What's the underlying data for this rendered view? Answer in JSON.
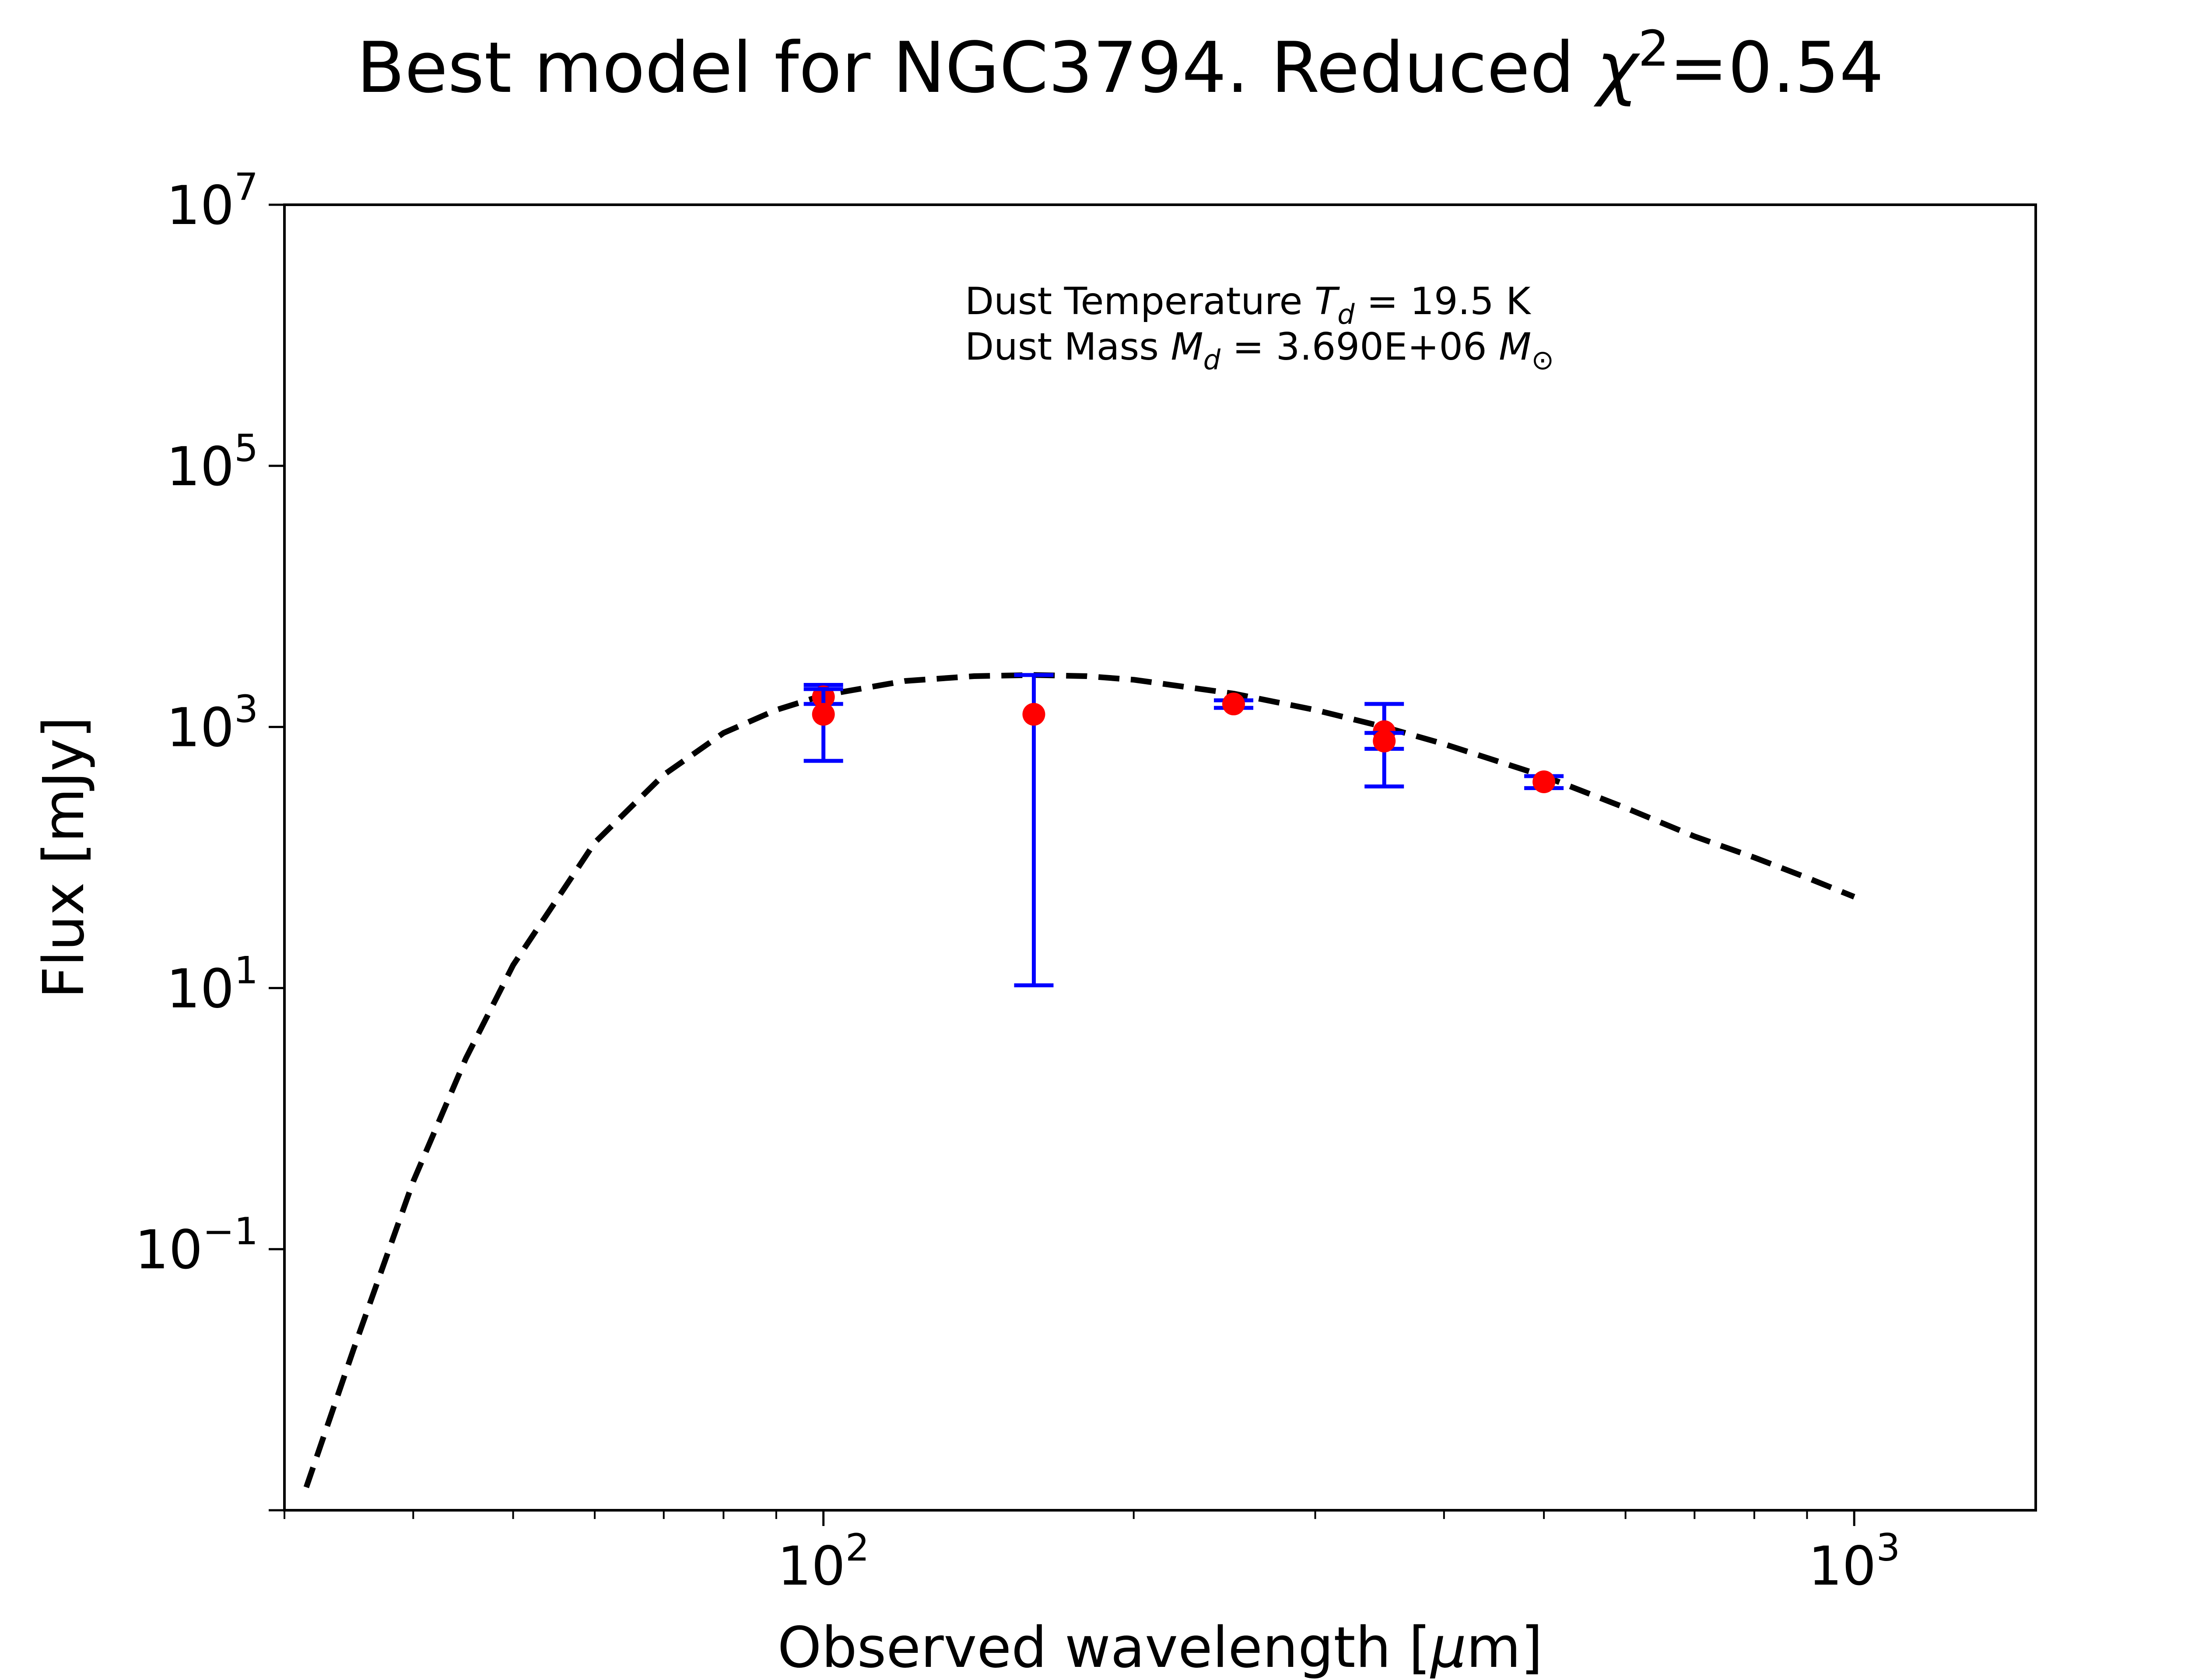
{
  "chart_data": {
    "type": "scatter",
    "title": {
      "text": "Best model for NGC3794. Reduced ",
      "symbol": "χ",
      "superscript": "2",
      "suffix": "=0.54"
    },
    "xlabel": {
      "prefix": "Observed wavelength [",
      "symbol": "μ",
      "suffix": "m]"
    },
    "ylabel": "Flux [mJy]",
    "xscale": "log",
    "yscale": "log",
    "xlim": [
      30,
      1500
    ],
    "ylim": [
      0.001,
      10000000
    ],
    "x_ticks": [
      {
        "value": 100,
        "base": "10",
        "exp": "2"
      },
      {
        "value": 1000,
        "base": "10",
        "exp": "3"
      }
    ],
    "y_ticks": [
      {
        "value": 0.1,
        "base": "10",
        "exp": "−1"
      },
      {
        "value": 10,
        "base": "10",
        "exp": "1"
      },
      {
        "value": 1000,
        "base": "10",
        "exp": "3"
      },
      {
        "value": 100000,
        "base": "10",
        "exp": "5"
      },
      {
        "value": 10000000,
        "base": "10",
        "exp": "7"
      }
    ],
    "series": [
      {
        "kind": "model",
        "style": "dashed",
        "color": "#000000",
        "x": [
          31.5,
          35,
          40,
          45,
          50,
          60,
          70,
          80,
          90,
          100,
          120,
          140,
          160,
          180,
          200,
          250,
          300,
          350,
          400,
          500,
          600,
          700,
          800,
          900,
          1000
        ],
        "y": [
          0.0015,
          0.017,
          0.33,
          2.9,
          15,
          130,
          430,
          900,
          1350,
          1750,
          2250,
          2450,
          2500,
          2450,
          2300,
          1800,
          1350,
          1000,
          740,
          420,
          240,
          145,
          100,
          70,
          50
        ]
      },
      {
        "kind": "observations",
        "marker_color": "#ff0000",
        "errorbar_color": "#0000ff",
        "points": [
          {
            "x": 100,
            "y": 1700,
            "y_low": 1500,
            "y_high": 2100
          },
          {
            "x": 100,
            "y": 1250,
            "y_low": 550,
            "y_high": 1950
          },
          {
            "x": 160,
            "y": 1250,
            "y_low": 10.5,
            "y_high": 2500
          },
          {
            "x": 250,
            "y": 1500,
            "y_low": 1400,
            "y_high": 1600
          },
          {
            "x": 350,
            "y": 920,
            "y_low": 350,
            "y_high": 1500
          },
          {
            "x": 350,
            "y": 780,
            "y_low": 680,
            "y_high": 900
          },
          {
            "x": 500,
            "y": 380,
            "y_low": 340,
            "y_high": 420
          }
        ]
      }
    ],
    "annotations": {
      "line1": {
        "label": "Dust Temperature ",
        "sym": "T",
        "sub": "d",
        "value": " = 19.5 K"
      },
      "line2": {
        "label": "Dust Mass ",
        "sym": "M",
        "sub": "d",
        "value": " = 3.690E+06 ",
        "unit_sym": "M",
        "unit_sub": "⊙"
      }
    },
    "grid": false,
    "legend": "none"
  }
}
